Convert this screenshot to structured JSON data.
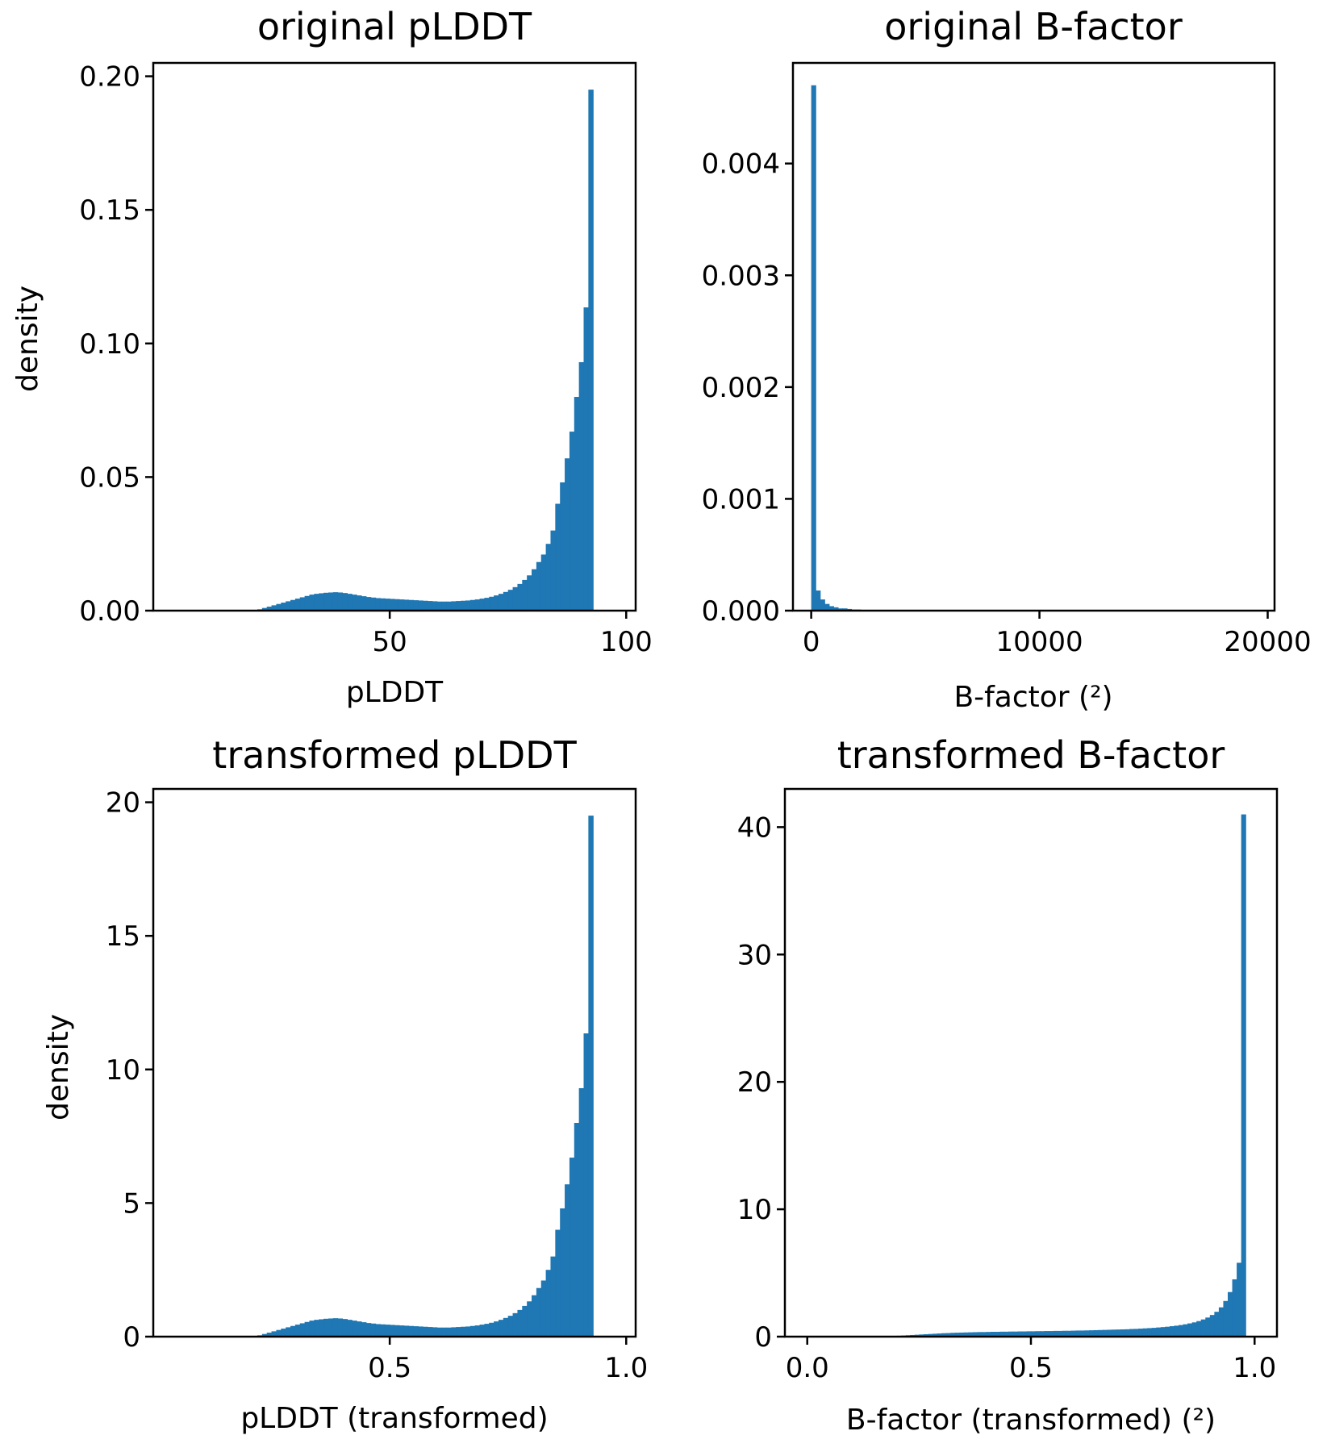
{
  "colors": {
    "bar": "#1f77b4",
    "axes": "#000000",
    "background": "#ffffff"
  },
  "chart_data": [
    {
      "type": "bar",
      "title": "original pLDDT",
      "xlabel": "pLDDT",
      "ylabel": "density",
      "xlim": [
        0,
        102
      ],
      "ylim": [
        0,
        0.205
      ],
      "xticks": [
        50,
        100
      ],
      "xtick_labels": [
        "50",
        "100"
      ],
      "yticks": [
        0,
        0.05,
        0.1,
        0.15,
        0.2
      ],
      "ytick_labels": [
        "0.00",
        "0.05",
        "0.10",
        "0.15",
        "0.20"
      ],
      "grid": false,
      "bin_start": 22,
      "bin_width": 1,
      "values": [
        0.0005,
        0.001,
        0.0015,
        0.002,
        0.0025,
        0.003,
        0.0035,
        0.004,
        0.0045,
        0.005,
        0.0055,
        0.006,
        0.0063,
        0.0065,
        0.0067,
        0.0068,
        0.0069,
        0.0068,
        0.0066,
        0.0063,
        0.006,
        0.0057,
        0.0054,
        0.0051,
        0.0049,
        0.0047,
        0.0046,
        0.0045,
        0.0044,
        0.0043,
        0.0042,
        0.0041,
        0.004,
        0.0039,
        0.0038,
        0.0037,
        0.0036,
        0.0035,
        0.0034,
        0.0034,
        0.0034,
        0.0035,
        0.0036,
        0.0037,
        0.0038,
        0.004,
        0.0042,
        0.0045,
        0.0048,
        0.0052,
        0.0057,
        0.0063,
        0.007,
        0.0078,
        0.0088,
        0.01,
        0.0115,
        0.0132,
        0.0155,
        0.0182,
        0.021,
        0.025,
        0.03,
        0.04,
        0.048,
        0.057,
        0.067,
        0.08,
        0.093,
        0.1135,
        0.195
      ]
    },
    {
      "type": "bar",
      "title": "original B-factor",
      "xlabel": "B-factor (²)",
      "ylabel": "",
      "xlim": [
        -800,
        20300
      ],
      "ylim": [
        0,
        0.0049
      ],
      "xticks": [
        0,
        10000,
        20000
      ],
      "xtick_labels": [
        "0",
        "10000",
        "20000"
      ],
      "yticks": [
        0,
        0.001,
        0.002,
        0.003,
        0.004
      ],
      "ytick_labels": [
        "0.000",
        "0.001",
        "0.002",
        "0.003",
        "0.004"
      ],
      "grid": false,
      "bin_start": 0,
      "bin_width": 196,
      "values": [
        0.0047,
        0.00018,
        0.0001,
        6e-05,
        4e-05,
        3e-05,
        2e-05,
        2e-05,
        1.5e-05,
        1e-05,
        1e-05,
        5e-06,
        4e-06,
        3e-06,
        2e-06
      ]
    },
    {
      "type": "bar",
      "title": "transformed pLDDT",
      "xlabel": "pLDDT (transformed)",
      "ylabel": "density",
      "xlim": [
        0,
        1.02
      ],
      "ylim": [
        0,
        20.5
      ],
      "xticks": [
        0.5,
        1.0
      ],
      "xtick_labels": [
        "0.5",
        "1.0"
      ],
      "yticks": [
        0,
        5,
        10,
        15,
        20
      ],
      "ytick_labels": [
        "0",
        "5",
        "10",
        "15",
        "20"
      ],
      "grid": false,
      "bin_start": 0.22,
      "bin_width": 0.01,
      "values": [
        0.05,
        0.1,
        0.15,
        0.2,
        0.25,
        0.3,
        0.35,
        0.4,
        0.45,
        0.5,
        0.55,
        0.6,
        0.63,
        0.65,
        0.67,
        0.68,
        0.69,
        0.68,
        0.66,
        0.63,
        0.6,
        0.57,
        0.54,
        0.51,
        0.49,
        0.47,
        0.46,
        0.45,
        0.44,
        0.43,
        0.42,
        0.41,
        0.4,
        0.39,
        0.38,
        0.37,
        0.36,
        0.35,
        0.34,
        0.34,
        0.34,
        0.35,
        0.36,
        0.37,
        0.38,
        0.4,
        0.42,
        0.45,
        0.48,
        0.52,
        0.57,
        0.63,
        0.7,
        0.78,
        0.88,
        1.0,
        1.15,
        1.32,
        1.55,
        1.82,
        2.1,
        2.5,
        3.0,
        4.0,
        4.8,
        5.7,
        6.7,
        8.0,
        9.3,
        11.35,
        19.5
      ]
    },
    {
      "type": "bar",
      "title": "transformed B-factor",
      "xlabel": "B-factor (transformed) (²)",
      "ylabel": "",
      "xlim": [
        -0.05,
        1.05
      ],
      "ylim": [
        0,
        43
      ],
      "xticks": [
        0.0,
        0.5,
        1.0
      ],
      "xtick_labels": [
        "0.0",
        "0.5",
        "1.0"
      ],
      "yticks": [
        0,
        10,
        20,
        30,
        40
      ],
      "ytick_labels": [
        "0",
        "10",
        "20",
        "30",
        "40"
      ],
      "grid": false,
      "bin_start": 0.0,
      "bin_width": 0.01,
      "values": [
        0,
        0,
        0,
        0,
        0,
        0,
        0,
        0,
        0,
        0,
        0.01,
        0.01,
        0.01,
        0.02,
        0.02,
        0.03,
        0.03,
        0.04,
        0.05,
        0.06,
        0.07,
        0.09,
        0.11,
        0.13,
        0.15,
        0.17,
        0.19,
        0.21,
        0.23,
        0.25,
        0.27,
        0.28,
        0.3,
        0.31,
        0.32,
        0.33,
        0.34,
        0.35,
        0.36,
        0.36,
        0.37,
        0.38,
        0.38,
        0.39,
        0.39,
        0.4,
        0.4,
        0.41,
        0.41,
        0.42,
        0.42,
        0.43,
        0.43,
        0.44,
        0.44,
        0.45,
        0.45,
        0.46,
        0.46,
        0.47,
        0.48,
        0.48,
        0.49,
        0.5,
        0.51,
        0.52,
        0.53,
        0.54,
        0.55,
        0.56,
        0.57,
        0.58,
        0.6,
        0.61,
        0.63,
        0.65,
        0.67,
        0.69,
        0.72,
        0.75,
        0.78,
        0.82,
        0.86,
        0.91,
        0.97,
        1.04,
        1.12,
        1.22,
        1.35,
        1.5,
        1.7,
        1.95,
        2.3,
        2.8,
        3.5,
        4.5,
        5.8,
        41.0
      ]
    }
  ]
}
